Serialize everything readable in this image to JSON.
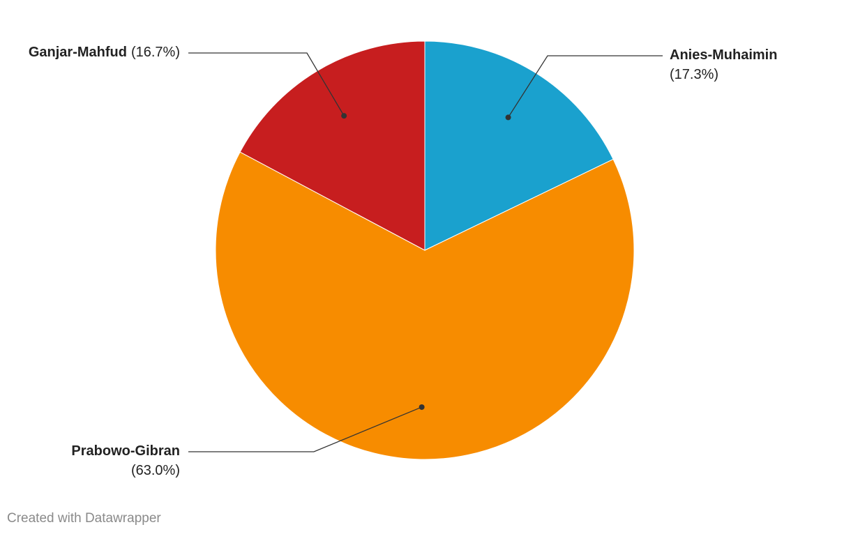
{
  "chart_data": {
    "type": "pie",
    "categories": [
      "Anies-Muhaimin",
      "Prabowo-Gibran",
      "Ganjar-Mahfud"
    ],
    "values": [
      17.3,
      63.0,
      16.7
    ],
    "value_labels": [
      "(17.3%)",
      "(63.0%)",
      "(16.7%)"
    ],
    "colors": [
      "#1aa1ce",
      "#f78c00",
      "#c71e1f"
    ]
  },
  "credit": "Created with Datawrapper"
}
